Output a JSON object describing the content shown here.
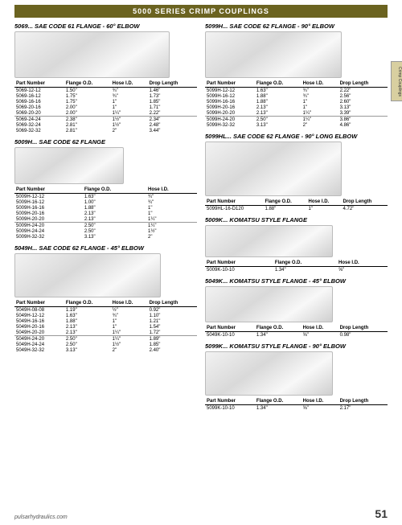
{
  "header": {
    "title": "5000 SERIES CRIMP COUPLINGS"
  },
  "sideTab": "Crimp Couplings",
  "footer": {
    "url": "pulsarhydraulics.com",
    "page": "51"
  },
  "headers4": [
    "Part Number",
    "Flange O.D.",
    "Hose I.D.",
    "Drop Length"
  ],
  "headers3": [
    "Part Number",
    "Flange O.D.",
    "Hose I.D."
  ],
  "left": {
    "s5069": {
      "title": "5069...  SAE CODE 61 FLANGE - 60° ELBOW",
      "rows": [
        [
          "5069-12-12",
          "1.50\"",
          "¾\"",
          "1.46\""
        ],
        [
          "5069-16-12",
          "1.75\"",
          "¾\"",
          "1.73\""
        ],
        [
          "5069-16-16",
          "1.75\"",
          "1\"",
          "1.85\""
        ],
        [
          "5069-20-16",
          "2.00\"",
          "1\"",
          "1.71\""
        ],
        [
          "5069-20-20",
          "2.00\"",
          "1¼\"",
          "2.22\""
        ]
      ],
      "rows2": [
        [
          "5069-24-24",
          "2.38\"",
          "1½\"",
          "2.34\""
        ],
        [
          "5069-32-24",
          "2.81\"",
          "1½\"",
          "2.48\""
        ],
        [
          "5069-32-32",
          "2.81\"",
          "2\"",
          "3.44\""
        ]
      ]
    },
    "s5009H": {
      "title": "5009H...  SAE CODE 62 FLANGE",
      "rows": [
        [
          "5009H-12-12",
          "1.63\"",
          "¾\""
        ],
        [
          "5009H-16-12",
          "1.00\"",
          "¾\""
        ],
        [
          "5009H-16-16",
          "1.88\"",
          "1\""
        ],
        [
          "5009H-20-16",
          "2.13\"",
          "1\""
        ],
        [
          "5009H-20-20",
          "2.13\"",
          "1¼\""
        ]
      ],
      "rows2": [
        [
          "5009H-24-20",
          "2.50\"",
          "1¼\""
        ],
        [
          "5009H-24-24",
          "2.50\"",
          "1½\""
        ],
        [
          "5009H-32-32",
          "3.13\"",
          "2\""
        ]
      ]
    },
    "s5049H": {
      "title": "5049H...  SAE CODE 62 FLANGE - 45° ELBOW",
      "rows": [
        [
          "5049H-08-08",
          "1.19\"",
          "½\"",
          "0.92\""
        ],
        [
          "5049H-12-12",
          "1.63\"",
          "¾\"",
          "1.10\""
        ],
        [
          "5049H-16-16",
          "1.88\"",
          "1\"",
          "1.21\""
        ],
        [
          "5049H-20-16",
          "2.13\"",
          "1\"",
          "1.54\""
        ],
        [
          "5049H-20-20",
          "2.13\"",
          "1¼\"",
          "1.72\""
        ]
      ],
      "rows2": [
        [
          "5049H-24-20",
          "2.50\"",
          "1¼\"",
          "1.89\""
        ],
        [
          "5049H-24-24",
          "2.50\"",
          "1½\"",
          "1.85\""
        ],
        [
          "5049H-32-32",
          "3.13\"",
          "2\"",
          "2.40\""
        ]
      ]
    }
  },
  "right": {
    "s5099H": {
      "title": "5099H...  SAE CODE 62 FLANGE - 90° ELBOW",
      "rows": [
        [
          "5099H-12-12",
          "1.63\"",
          "¾\"",
          "2.22\""
        ],
        [
          "5099H-16-12",
          "1.88\"",
          "¾\"",
          "2.56\""
        ],
        [
          "5099H-16-16",
          "1.88\"",
          "1\"",
          "2.60\""
        ],
        [
          "5099H-20-16",
          "2.13\"",
          "1\"",
          "3.13\""
        ],
        [
          "5099H-20-20",
          "2.13\"",
          "1¼\"",
          "3.39\""
        ]
      ],
      "rows2": [
        [
          "5099H-24-20",
          "2.50\"",
          "1¼\"",
          "3.86\""
        ],
        [
          "5099H-32-32",
          "3.13\"",
          "2\"",
          "4.86\""
        ]
      ]
    },
    "s5099HL": {
      "title": "5099HL...  SAE CODE 62 FLANGE - 90° LONG ELBOW",
      "rows": [
        [
          "5099HL-16-D120",
          "1.88\"",
          "1\"",
          "4.72\""
        ]
      ]
    },
    "s5009K": {
      "title": "5009K...  KOMATSU STYLE FLANGE",
      "rows": [
        [
          "5009K-10-10",
          "1.34\"",
          "⅝\""
        ]
      ]
    },
    "s5049K": {
      "title": "5049K...  KOMATSU STYLE FLANGE - 45° ELBOW",
      "rows": [
        [
          "5049K-10-10",
          "1.34\"",
          "⅝\"",
          "0.98\""
        ]
      ]
    },
    "s5099K": {
      "title": "5099K...  KOMATSU STYLE FLANGE - 90° ELBOW",
      "rows": [
        [
          "5099K-10-10",
          "1.34\"",
          "⅝\"",
          "2.17\""
        ]
      ]
    }
  }
}
